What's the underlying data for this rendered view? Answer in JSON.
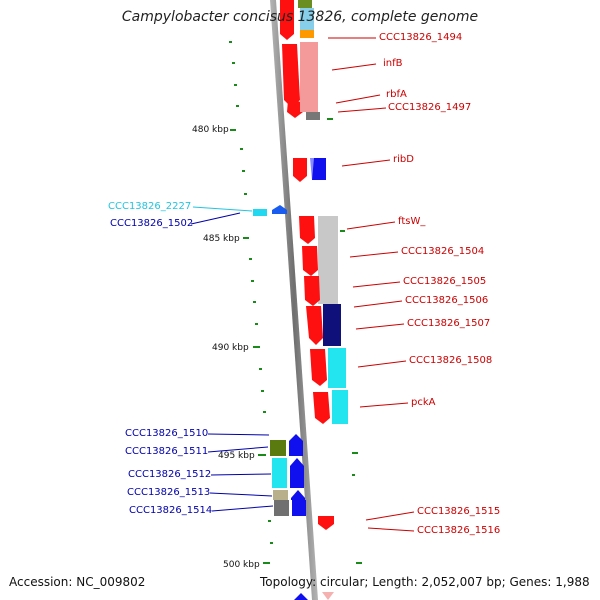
{
  "title": "Campylobacter concisus 13826, complete genome",
  "footer": {
    "accession": "Accession: NC_009802",
    "topology": "Topology: circular; Length: 2,052,007 bp; Genes: 1,988"
  },
  "scale_labels": [
    "480 kbp",
    "485 kbp",
    "490 kbp",
    "495 kbp",
    "500 kbp"
  ],
  "gene_labels": {
    "right": [
      "CCC13826_1494",
      "infB",
      "rbfA",
      "CCC13826_1497",
      "ribD",
      "ftsW_",
      "CCC13826_1504",
      "CCC13826_1505",
      "CCC13826_1506",
      "CCC13826_1507",
      "CCC13826_1508",
      "pckA",
      "CCC13826_1515",
      "CCC13826_1516"
    ],
    "left": [
      "CCC13826_2227",
      "CCC13826_1502",
      "CCC13826_1510",
      "CCC13826_1511",
      "CCC13826_1512",
      "CCC13826_1513",
      "CCC13826_1514"
    ]
  },
  "colors": {
    "forward_label": "#cc0000",
    "reverse_label": "#0000aa",
    "rna_label": "#22c5e0",
    "forward_gene": "#ff1010",
    "reverse_gene": "#1010ee",
    "backbone": "#888888",
    "tick": "#1a8a1a"
  }
}
